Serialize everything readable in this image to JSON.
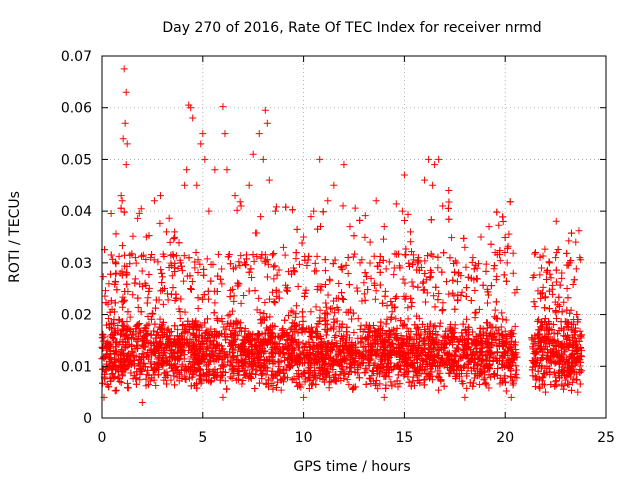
{
  "chart_data": {
    "type": "scatter",
    "title": "Day 270 of 2016, Rate Of TEC Index for receiver nrmd",
    "xlabel": "GPS time / hours",
    "ylabel": "ROTI / TECUs",
    "xlim": [
      0,
      25
    ],
    "ylim": [
      0,
      0.07
    ],
    "xticks": [
      0,
      5,
      10,
      15,
      20,
      25
    ],
    "yticks": [
      0,
      0.01,
      0.02,
      0.03,
      0.04,
      0.05,
      0.06,
      0.07
    ],
    "xtick_labels": [
      "0",
      "5",
      "10",
      "15",
      "20",
      "25"
    ],
    "ytick_labels": [
      "0",
      "0.01",
      "0.02",
      "0.03",
      "0.04",
      "0.05",
      "0.06",
      "0.07"
    ],
    "grid": true,
    "marker": "+",
    "color": "#ff0000",
    "series": [
      {
        "name": "ROTI",
        "data_gap_hours": [
          20.6,
          21.3
        ],
        "x_range": [
          0.0,
          23.8
        ],
        "typical_range": [
          0.005,
          0.02
        ],
        "points": [
          [
            1.1,
            0.0675
          ],
          [
            1.2,
            0.063
          ],
          [
            1.15,
            0.057
          ],
          [
            1.05,
            0.054
          ],
          [
            1.0,
            0.042
          ],
          [
            0.95,
            0.043
          ],
          [
            1.25,
            0.053
          ],
          [
            1.2,
            0.049
          ],
          [
            0.3,
            0.022
          ],
          [
            0.5,
            0.021
          ],
          [
            0.7,
            0.028
          ],
          [
            0.9,
            0.028
          ],
          [
            2.2,
            0.035
          ],
          [
            2.6,
            0.042
          ],
          [
            2.9,
            0.043
          ],
          [
            3.2,
            0.036
          ],
          [
            3.6,
            0.036
          ],
          [
            3.9,
            0.03
          ],
          [
            4.1,
            0.045
          ],
          [
            4.3,
            0.0605
          ],
          [
            4.4,
            0.06
          ],
          [
            4.5,
            0.058
          ],
          [
            4.2,
            0.048
          ],
          [
            4.7,
            0.045
          ],
          [
            4.9,
            0.053
          ],
          [
            5.0,
            0.055
          ],
          [
            5.1,
            0.05
          ],
          [
            5.3,
            0.04
          ],
          [
            5.6,
            0.048
          ],
          [
            6.0,
            0.0602
          ],
          [
            6.1,
            0.055
          ],
          [
            6.2,
            0.048
          ],
          [
            6.6,
            0.043
          ],
          [
            6.9,
            0.041
          ],
          [
            7.3,
            0.045
          ],
          [
            7.5,
            0.051
          ],
          [
            7.8,
            0.055
          ],
          [
            8.0,
            0.05
          ],
          [
            8.1,
            0.0595
          ],
          [
            8.2,
            0.057
          ],
          [
            8.3,
            0.046
          ],
          [
            8.6,
            0.04
          ],
          [
            9.0,
            0.033
          ],
          [
            9.5,
            0.029
          ],
          [
            10.0,
            0.035
          ],
          [
            10.5,
            0.04
          ],
          [
            10.8,
            0.05
          ],
          [
            11.2,
            0.042
          ],
          [
            11.5,
            0.045
          ],
          [
            12.0,
            0.049
          ],
          [
            12.3,
            0.037
          ],
          [
            12.8,
            0.03
          ],
          [
            13.3,
            0.034
          ],
          [
            13.6,
            0.042
          ],
          [
            14.0,
            0.037
          ],
          [
            14.5,
            0.029
          ],
          [
            14.9,
            0.04
          ],
          [
            15.0,
            0.047
          ],
          [
            15.3,
            0.036
          ],
          [
            15.7,
            0.031
          ],
          [
            16.0,
            0.046
          ],
          [
            16.2,
            0.05
          ],
          [
            16.4,
            0.045
          ],
          [
            16.5,
            0.049
          ],
          [
            16.7,
            0.05
          ],
          [
            16.9,
            0.041
          ],
          [
            17.2,
            0.044
          ],
          [
            17.6,
            0.03
          ],
          [
            18.0,
            0.033
          ],
          [
            18.4,
            0.031
          ],
          [
            18.8,
            0.035
          ],
          [
            19.2,
            0.037
          ],
          [
            19.5,
            0.032
          ],
          [
            19.9,
            0.038
          ],
          [
            20.1,
            0.03
          ],
          [
            20.4,
            0.028
          ],
          [
            21.5,
            0.032
          ],
          [
            21.8,
            0.029
          ],
          [
            22.2,
            0.03
          ],
          [
            22.5,
            0.031
          ],
          [
            22.8,
            0.027
          ],
          [
            23.2,
            0.03
          ],
          [
            23.5,
            0.034
          ],
          [
            23.7,
            0.031
          ],
          [
            0.1,
            0.004
          ],
          [
            2.0,
            0.003
          ],
          [
            6.0,
            0.004
          ],
          [
            10.0,
            0.004
          ],
          [
            14.0,
            0.004
          ],
          [
            18.0,
            0.004
          ],
          [
            20.3,
            0.004
          ],
          [
            22.0,
            0.005
          ],
          [
            23.6,
            0.005
          ]
        ]
      }
    ]
  }
}
